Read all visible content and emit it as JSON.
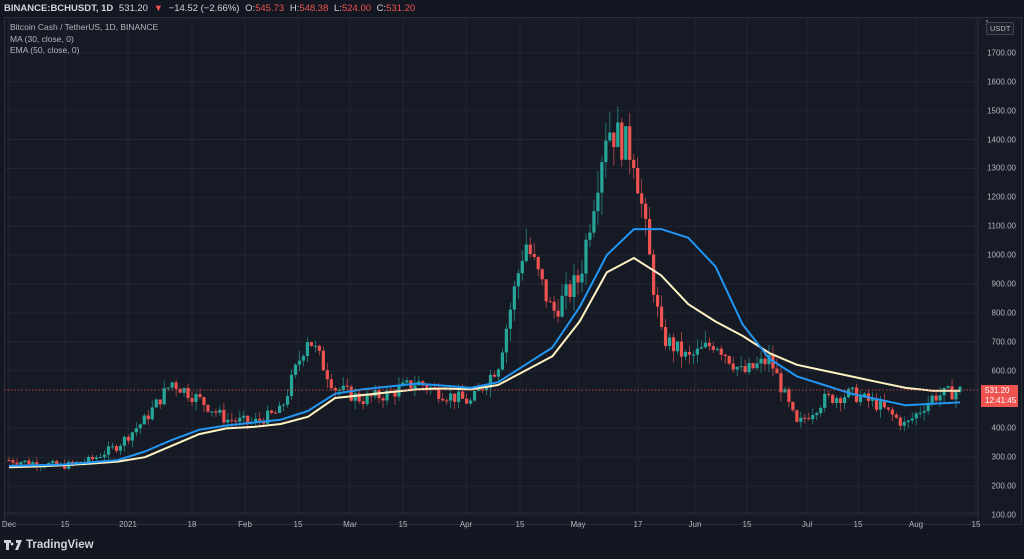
{
  "header": {
    "symbol": "BINANCE:BCHUSDT, 1D",
    "last": "531.20",
    "change_icon": "triangle-down-icon",
    "change": "−14.52 (−2.66%)",
    "open_label": "O:",
    "open": "545.73",
    "high_label": "H:",
    "high": "548.38",
    "low_label": "L:",
    "low": "524.00",
    "close_label": "C:",
    "close": "531.20"
  },
  "legend": {
    "title": "Bitcoin Cash / TetherUS, 1D, BINANCE",
    "ma": "MA (30, close, 0)",
    "ema": "EMA (50, close, 0)"
  },
  "price_axis": {
    "currency": "USDT",
    "scale_mode": "1",
    "ticks": [
      "1700.00",
      "1600.00",
      "1500.00",
      "1400.00",
      "1300.00",
      "1200.00",
      "1100.00",
      "1000.00",
      "900.00",
      "800.00",
      "700.00",
      "600.00",
      "400.00",
      "300.00",
      "200.00",
      "100.00"
    ],
    "current_price": "531.20",
    "countdown": "12:41:45"
  },
  "time_axis": {
    "ticks": [
      "Dec",
      "15",
      "2021",
      "18",
      "Feb",
      "15",
      "Mar",
      "15",
      "Apr",
      "15",
      "May",
      "17",
      "Jun",
      "15",
      "Jul",
      "15",
      "Aug",
      "15"
    ]
  },
  "branding": {
    "logo_text": "TradingView",
    "logo_icon": "tradingview-logo-icon"
  },
  "colors": {
    "up": "#26a69a",
    "down": "#ef5350",
    "ma": "#2196f3",
    "ema": "#fff3c4",
    "background": "#161a25",
    "grid": "#222632",
    "text": "#b2b5be"
  },
  "chart_data": {
    "type": "candlestick",
    "title": "Bitcoin Cash / TetherUS, 1D, BINANCE",
    "xlabel": "",
    "ylabel": "USDT",
    "ylim": [
      100,
      1750
    ],
    "x_range": [
      "2020-12-01",
      "2021-08-15"
    ],
    "grid": true,
    "legend_position": "top-left",
    "categories": [
      "Dec",
      "15",
      "2021",
      "18",
      "Feb",
      "15",
      "Mar",
      "15",
      "Apr",
      "15",
      "May",
      "17",
      "Jun",
      "15",
      "Jul",
      "15",
      "Aug",
      "15"
    ],
    "series": [
      {
        "name": "BCHUSDT 1D (close, approx.)",
        "x": [
          "2020-12-01",
          "2020-12-08",
          "2020-12-15",
          "2020-12-22",
          "2020-12-29",
          "2021-01-05",
          "2021-01-12",
          "2021-01-19",
          "2021-01-26",
          "2021-02-02",
          "2021-02-09",
          "2021-02-16",
          "2021-02-23",
          "2021-03-02",
          "2021-03-09",
          "2021-03-16",
          "2021-03-23",
          "2021-03-30",
          "2021-04-06",
          "2021-04-13",
          "2021-04-20",
          "2021-04-27",
          "2021-05-04",
          "2021-05-11",
          "2021-05-18",
          "2021-05-25",
          "2021-06-01",
          "2021-06-08",
          "2021-06-15",
          "2021-06-22",
          "2021-06-29",
          "2021-07-06",
          "2021-07-13",
          "2021-07-20",
          "2021-07-27",
          "2021-08-03"
        ],
        "values": [
          290,
          280,
          270,
          290,
          340,
          430,
          560,
          500,
          430,
          420,
          460,
          720,
          540,
          500,
          520,
          560,
          520,
          490,
          620,
          1050,
          800,
          920,
          1450,
          1350,
          720,
          640,
          700,
          590,
          640,
          410,
          500,
          520,
          480,
          410,
          510,
          531
        ]
      },
      {
        "name": "MA (30, close, 0)",
        "values": [
          270,
          272,
          275,
          282,
          290,
          320,
          360,
          395,
          410,
          420,
          430,
          460,
          520,
          535,
          545,
          555,
          548,
          540,
          560,
          620,
          680,
          820,
          1000,
          1090,
          1090,
          1060,
          960,
          760,
          640,
          580,
          550,
          520,
          500,
          480,
          485,
          490
        ]
      },
      {
        "name": "EMA (50, close, 0)",
        "values": [
          265,
          268,
          272,
          278,
          285,
          300,
          340,
          380,
          400,
          405,
          415,
          440,
          505,
          515,
          525,
          535,
          538,
          535,
          550,
          600,
          650,
          770,
          940,
          990,
          930,
          830,
          770,
          720,
          660,
          620,
          600,
          580,
          560,
          540,
          530,
          530
        ]
      }
    ]
  }
}
